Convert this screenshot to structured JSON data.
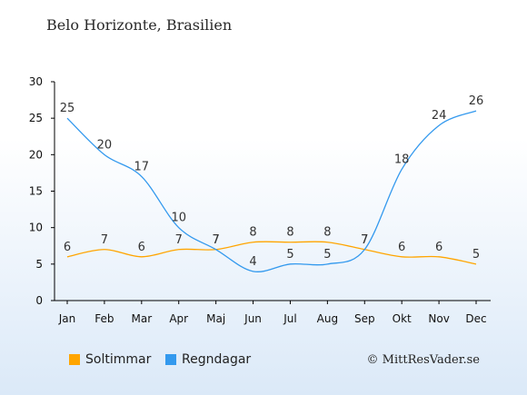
{
  "title": "Belo Horizonte, Brasilien",
  "watermark": "© MittResVader.se",
  "chart_data": {
    "type": "line",
    "categories": [
      "Jan",
      "Feb",
      "Mar",
      "Apr",
      "Maj",
      "Jun",
      "Jul",
      "Aug",
      "Sep",
      "Okt",
      "Nov",
      "Dec"
    ],
    "ylim": [
      0,
      30
    ],
    "yticks": [
      0,
      5,
      10,
      15,
      20,
      25,
      30
    ],
    "grid": false,
    "legend_position": "bottom",
    "series": [
      {
        "name": "Soltimmar",
        "color": "#ffa500",
        "values": [
          6,
          7,
          6,
          7,
          7,
          8,
          8,
          8,
          7,
          6,
          6,
          5
        ]
      },
      {
        "name": "Regndagar",
        "color": "#3399ee",
        "values": [
          25,
          20,
          17,
          10,
          7,
          4,
          5,
          5,
          7,
          18,
          24,
          26
        ]
      }
    ]
  }
}
